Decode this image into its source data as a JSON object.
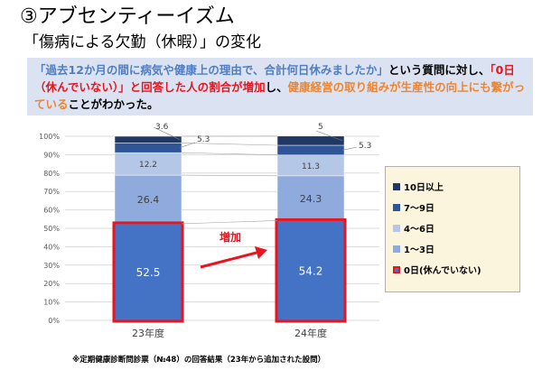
{
  "header": {
    "title": "③アブセンティーイズム",
    "subtitle": "「傷病による欠勤（休暇）」の変化"
  },
  "question_box": {
    "segments": [
      {
        "text": "「過去12か月の間に病気や健康上の理由で、合計何日休みましたか」",
        "color": "blue"
      },
      {
        "text": "という質問に対し、",
        "color": "black"
      },
      {
        "text": "「0日（休んでいない）」と回答した人の割合が増加",
        "color": "red"
      },
      {
        "text": "し、",
        "color": "black"
      },
      {
        "text": "健康経営の取り組みが生産性の向上にも繋がっている",
        "color": "orange"
      },
      {
        "text": "ことがわかった。",
        "color": "black"
      }
    ]
  },
  "chart_data": {
    "type": "bar",
    "stacked": true,
    "categories": [
      "23年度",
      "24年度"
    ],
    "ylim": [
      0,
      100
    ],
    "yticks": [
      "0%",
      "10%",
      "20%",
      "30%",
      "40%",
      "50%",
      "60%",
      "70%",
      "80%",
      "90%",
      "100%"
    ],
    "series": [
      {
        "name": "0日(休んでいない)",
        "values": [
          52.5,
          54.2
        ],
        "labels": [
          "52.5",
          "54.2"
        ],
        "color": "#4472c4"
      },
      {
        "name": "1〜3日",
        "values": [
          26.4,
          24.3
        ],
        "labels": [
          "26.4",
          "24.3"
        ],
        "color": "#8faadc"
      },
      {
        "name": "4〜6日",
        "values": [
          12.2,
          11.3
        ],
        "labels": [
          "12.2",
          "11.3"
        ],
        "color": "#b4c7e7"
      },
      {
        "name": "7〜9日",
        "values": [
          5.3,
          5.3
        ],
        "labels": [
          "5.3",
          "5.3"
        ],
        "color": "#2f5597"
      },
      {
        "name": "10日以上",
        "values": [
          3.6,
          5.0
        ],
        "labels": [
          "3.6",
          "5"
        ],
        "color": "#203864"
      }
    ],
    "annotation": "増加",
    "legend_position": "right",
    "legend_order": [
      "10日以上",
      "7〜9日",
      "4〜6日",
      "1〜3日",
      "0日(休んでいない)"
    ],
    "highlight_color": "#e8141e"
  },
  "footnote": "※定期健康診断問診票（№48）の回答結果（23年から追加された設問）"
}
